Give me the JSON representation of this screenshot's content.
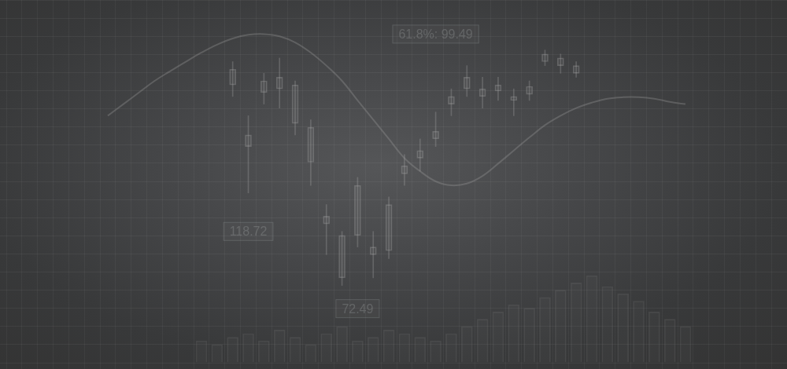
{
  "chart_data": {
    "type": "candlestick",
    "categories": [
      null,
      null,
      null,
      null,
      null,
      null,
      null,
      null,
      null,
      null,
      null,
      null,
      null,
      null,
      null,
      null,
      null,
      null,
      null,
      null,
      null,
      null,
      null,
      null,
      null,
      null,
      null,
      null,
      null,
      null,
      null,
      null,
      null,
      null,
      null,
      null,
      null,
      null,
      null,
      null,
      null,
      null,
      null,
      null,
      null,
      null,
      null,
      null,
      null,
      null
    ],
    "ylim": [
      0,
      100
    ],
    "yticks": [
      0,
      5,
      10,
      15,
      20,
      25,
      30,
      35,
      40,
      45,
      50,
      55,
      60,
      65,
      70,
      75,
      80,
      85,
      90,
      95,
      100
    ],
    "grid": true,
    "tick_labels": false,
    "series": [
      {
        "type": "bar",
        "color": "#8c8c8c",
        "values": [
          null,
          null,
          null,
          null,
          null,
          null,
          null,
          null,
          null,
          null,
          null,
          null,
          6,
          5,
          7,
          8,
          6,
          9,
          7,
          5,
          8,
          10,
          6,
          7,
          9,
          8,
          7,
          6,
          8,
          10,
          12,
          14,
          16,
          15,
          18,
          20,
          22,
          24,
          21,
          19,
          17,
          14,
          12,
          10,
          null,
          null,
          null,
          null,
          null,
          null
        ]
      },
      {
        "type": "candlestick",
        "color": "#b4b4b4",
        "open": [
          null,
          null,
          null,
          null,
          null,
          null,
          null,
          null,
          null,
          null,
          null,
          null,
          null,
          null,
          76.6,
          59.6,
          74.5,
          75.5,
          66.0,
          55.3,
          38.3,
          23.4,
          35.1,
          29.8,
          30.9,
          52.1,
          56.4,
          61.7,
          71.3,
          75.5,
          73.4,
          74.9,
          72.3,
          74.0,
          83.0,
          81.9,
          79.8,
          null,
          null,
          null,
          null,
          null,
          null,
          null,
          null,
          null,
          null,
          null,
          null,
          null
        ],
        "high": [
          null,
          null,
          null,
          null,
          null,
          null,
          null,
          null,
          null,
          null,
          null,
          null,
          null,
          null,
          83.0,
          68.1,
          79.8,
          84.0,
          77.7,
          67.0,
          43.6,
          36.2,
          51.1,
          36.2,
          45.7,
          57.4,
          61.7,
          69.1,
          75.5,
          81.9,
          78.7,
          78.7,
          75.5,
          77.7,
          86.2,
          85.1,
          83.0,
          null,
          null,
          null,
          null,
          null,
          null,
          null,
          null,
          null,
          null,
          null,
          null,
          null
        ],
        "low": [
          null,
          null,
          null,
          null,
          null,
          null,
          null,
          null,
          null,
          null,
          null,
          null,
          null,
          null,
          73.4,
          46.8,
          71.3,
          70.2,
          62.8,
          48.9,
          29.8,
          21.3,
          31.9,
          23.4,
          28.7,
          48.9,
          52.8,
          59.6,
          68.1,
          73.4,
          70.2,
          72.3,
          68.1,
          72.3,
          81.9,
          79.8,
          78.7,
          null,
          null,
          null,
          null,
          null,
          null,
          null,
          null,
          null,
          null,
          null,
          null,
          null
        ],
        "close": [
          null,
          null,
          null,
          null,
          null,
          null,
          null,
          null,
          null,
          null,
          null,
          null,
          null,
          null,
          80.9,
          62.8,
          77.7,
          78.7,
          76.6,
          64.9,
          40.4,
          35.1,
          48.9,
          31.9,
          43.6,
          54.3,
          58.5,
          63.8,
          73.4,
          78.7,
          75.5,
          76.6,
          73.4,
          76.2,
          85.1,
          84.0,
          81.9,
          null,
          null,
          null,
          null,
          null,
          null,
          null,
          null,
          null,
          null,
          null,
          null,
          null
        ]
      },
      {
        "type": "line",
        "color": "#a0a0a0",
        "values": [
          null,
          null,
          null,
          null,
          null,
          null,
          68.1,
          71.3,
          74.5,
          77.7,
          80.4,
          83.0,
          85.5,
          87.7,
          89.4,
          90.4,
          90.6,
          90.0,
          88.3,
          85.5,
          81.9,
          77.7,
          72.3,
          67.0,
          61.7,
          56.4,
          52.8,
          50.0,
          48.9,
          49.4,
          51.5,
          54.9,
          58.5,
          62.1,
          65.5,
          68.1,
          70.2,
          71.7,
          72.8,
          73.2,
          73.2,
          72.8,
          71.9,
          71.3,
          null,
          null,
          null,
          null,
          null,
          null
        ]
      }
    ],
    "annotations": [
      {
        "text": "61.8%: 99.49",
        "x": 27,
        "y": 90.6
      },
      {
        "text": "118.72",
        "x": 15,
        "y": 36.2
      },
      {
        "text": "72.49",
        "x": 22,
        "y": 14.9
      }
    ]
  }
}
